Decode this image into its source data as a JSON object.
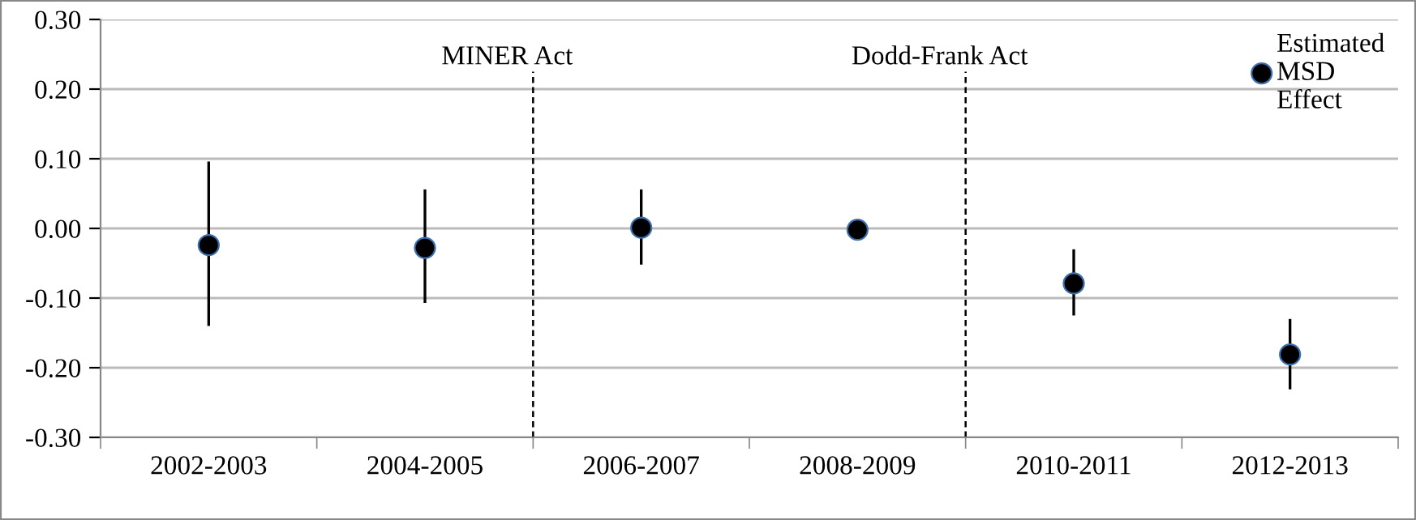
{
  "chart_data": {
    "type": "scatter",
    "categories": [
      "2002-2003",
      "2004-2005",
      "2006-2007",
      "2008-2009",
      "2010-2011",
      "2012-2013"
    ],
    "series": [
      {
        "name": "Estimated MSD Effect",
        "color": "#000000",
        "values": [
          -0.024,
          -0.028,
          0.001,
          -0.002,
          -0.079,
          -0.181
        ],
        "errors": [
          [
            -0.14,
            0.096
          ],
          [
            -0.107,
            0.056
          ],
          [
            -0.052,
            0.056
          ],
          null,
          [
            -0.125,
            -0.03
          ],
          [
            -0.231,
            -0.13
          ]
        ]
      }
    ],
    "ylim": [
      -0.3,
      0.3
    ],
    "yticks": [
      {
        "value": -0.3,
        "label": "-0.30"
      },
      {
        "value": -0.2,
        "label": "-0.20"
      },
      {
        "value": -0.1,
        "label": "-0.10"
      },
      {
        "value": 0,
        "label": "0.00"
      },
      {
        "value": 0.1,
        "label": "0.10"
      },
      {
        "value": 0.2,
        "label": "0.20"
      },
      {
        "value": 0.3,
        "label": "0.30"
      }
    ],
    "annotations": [
      "MINER Act",
      "Dodd-Frank Act"
    ],
    "grid": "y",
    "legend": "top right",
    "marker": "circle"
  }
}
